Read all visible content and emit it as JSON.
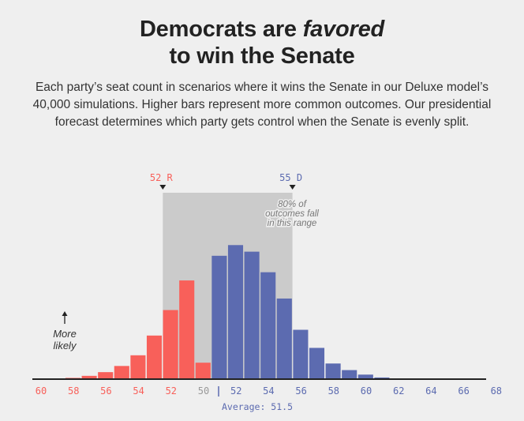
{
  "title": {
    "line1_plain": "Democrats are ",
    "line1_italic": "favored",
    "line2": "to win the Senate"
  },
  "subtitle": "Each party’s seat count in scenarios where it wins the Senate in our Deluxe model’s 40,000 simulations. Higher bars represent more common outcomes. Our presidential forecast determines which party gets control when the Senate is evenly split.",
  "colors": {
    "republican": "#f8605a",
    "democrat": "#5c6bb0",
    "range_shade": "#cbcbcb",
    "axis": "#222222"
  },
  "chart_data": {
    "type": "bar",
    "x_ticks": [
      {
        "label": "60",
        "party": "R"
      },
      {
        "label": "58",
        "party": "R"
      },
      {
        "label": "56",
        "party": "R"
      },
      {
        "label": "54",
        "party": "R"
      },
      {
        "label": "52",
        "party": "R"
      },
      {
        "label": "50",
        "party": "tie"
      },
      {
        "label": "52",
        "party": "D"
      },
      {
        "label": "54",
        "party": "D"
      },
      {
        "label": "56",
        "party": "D"
      },
      {
        "label": "58",
        "party": "D"
      },
      {
        "label": "60",
        "party": "D"
      },
      {
        "label": "62",
        "party": "D"
      },
      {
        "label": "64",
        "party": "D"
      },
      {
        "label": "66",
        "party": "D"
      },
      {
        "label": "68",
        "party": "D"
      }
    ],
    "republican_seats": [
      60,
      59,
      58,
      57,
      56,
      55,
      54,
      53,
      52,
      51,
      50
    ],
    "republican_values": [
      0.02,
      0.05,
      0.15,
      0.4,
      0.85,
      1.6,
      2.9,
      5.3,
      8.4,
      12.0,
      2.0
    ],
    "democrat_seats": [
      50,
      51,
      52,
      53,
      54,
      55,
      56,
      57,
      58,
      59,
      60,
      61
    ],
    "democrat_values": [
      0,
      15.0,
      16.3,
      15.5,
      13.0,
      9.8,
      6.0,
      3.8,
      1.9,
      1.1,
      0.55,
      0.2
    ],
    "ylim": [
      0,
      17
    ],
    "range_80": {
      "from_label": "52 R",
      "to_label": "55 D"
    },
    "range_note": [
      "80% of",
      "outcomes fall",
      "in this range"
    ],
    "more_likely_label": [
      "More",
      "likely"
    ],
    "average_label": "Average: 51.5",
    "average_value": 51.5
  }
}
